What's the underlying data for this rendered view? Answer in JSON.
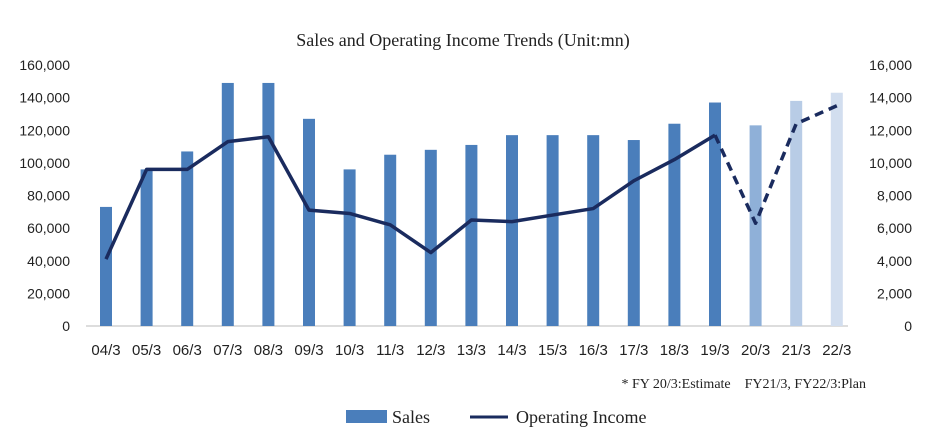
{
  "chart_data": {
    "type": "bar+line",
    "title": "Sales and Operating Income Trends (Unit:mn)",
    "categories": [
      "04/3",
      "05/3",
      "06/3",
      "07/3",
      "08/3",
      "09/3",
      "10/3",
      "11/3",
      "12/3",
      "13/3",
      "14/3",
      "15/3",
      "16/3",
      "17/3",
      "18/3",
      "19/3",
      "20/3",
      "21/3",
      "22/3"
    ],
    "left_axis": {
      "min": 0,
      "max": 160000,
      "ticks": [
        "0",
        "20,000",
        "40,000",
        "60,000",
        "80,000",
        "100,000",
        "120,000",
        "140,000",
        "160,000"
      ]
    },
    "right_axis": {
      "min": 0,
      "max": 16000,
      "ticks": [
        "0",
        "2,000",
        "4,000",
        "6,000",
        "8,000",
        "10,000",
        "12,000",
        "14,000",
        "16,000"
      ]
    },
    "series": [
      {
        "name": "Sales",
        "type": "bar",
        "axis": "left",
        "values": [
          73000,
          96000,
          107000,
          149000,
          149000,
          127000,
          96000,
          105000,
          108000,
          111000,
          117000,
          117000,
          117000,
          114000,
          124000,
          137000,
          123000,
          138000,
          143000
        ],
        "colors": [
          "#4a7ebb",
          "#4a7ebb",
          "#4a7ebb",
          "#4a7ebb",
          "#4a7ebb",
          "#4a7ebb",
          "#4a7ebb",
          "#4a7ebb",
          "#4a7ebb",
          "#4a7ebb",
          "#4a7ebb",
          "#4a7ebb",
          "#4a7ebb",
          "#4a7ebb",
          "#4a7ebb",
          "#4a7ebb",
          "#8fb0d8",
          "#b8cce6",
          "#d2deef"
        ]
      },
      {
        "name": "Operating Income",
        "type": "line",
        "axis": "right",
        "color": "#1a2b5e",
        "values": [
          4100,
          9600,
          9600,
          11300,
          11600,
          7100,
          6900,
          6200,
          4500,
          6500,
          6400,
          6800,
          7200,
          8900,
          10200,
          11700,
          6300,
          12400,
          13500
        ],
        "dashed_from_index": 15
      }
    ],
    "note": "* FY 20/3:Estimate    FY21/3, FY22/3:Plan",
    "legend": {
      "position": "bottom",
      "items": [
        "Sales",
        "Operating Income"
      ]
    }
  }
}
